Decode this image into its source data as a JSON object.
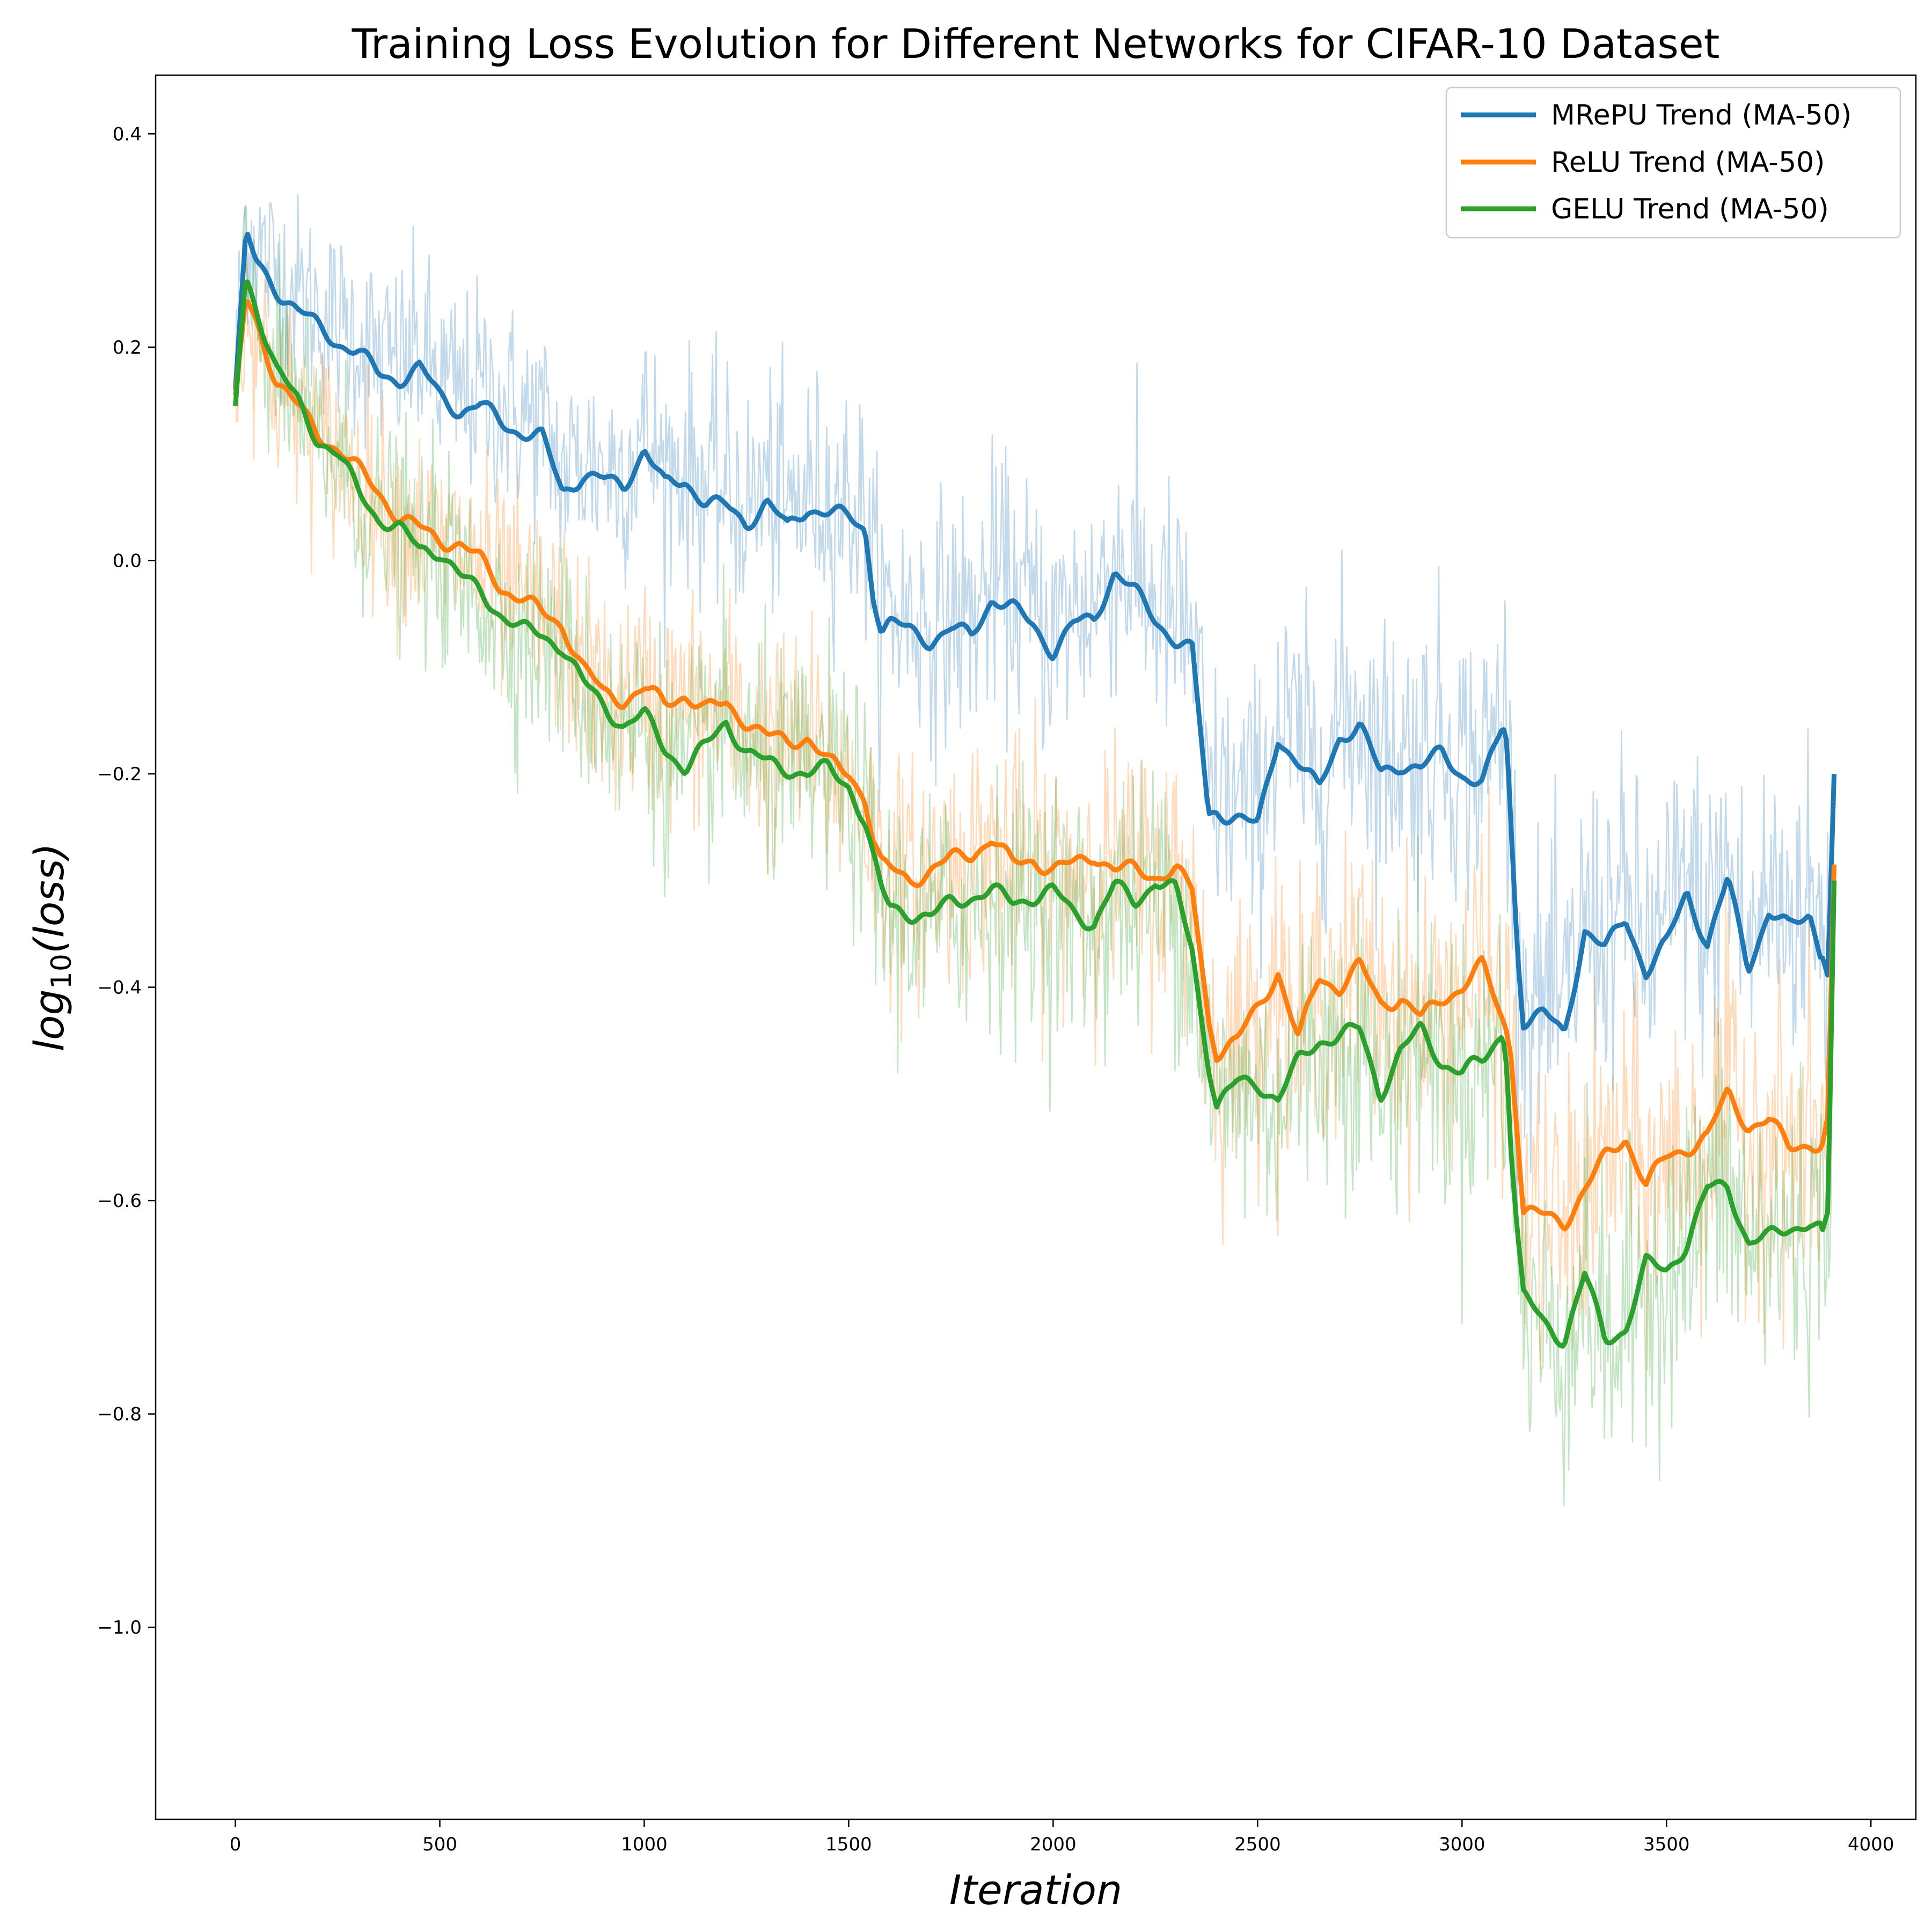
{
  "chart_data": {
    "type": "line",
    "title": "Training Loss Evolution for Different Networks for CIFAR-10 Dataset",
    "xlabel": "Iteration",
    "ylabel": "log",
    "ylabel_sub": "10",
    "ylabel_suffix": "(loss)",
    "xlim": [
      -195,
      4110
    ],
    "ylim": [
      -1.18,
      0.455
    ],
    "xticks": [
      0,
      500,
      1000,
      1500,
      2000,
      2500,
      3000,
      3500,
      4000
    ],
    "xtick_labels": [
      "0",
      "500",
      "1000",
      "1500",
      "2000",
      "2500",
      "3000",
      "3500",
      "4000"
    ],
    "yticks": [
      0.4,
      0.2,
      0.0,
      -0.2,
      -0.4,
      -0.6,
      -0.8,
      -1.0
    ],
    "ytick_labels": [
      "0.4",
      "0.2",
      "0.0",
      "−0.2",
      "−0.4",
      "−0.6",
      "−0.8",
      "−1.0"
    ],
    "grid": false,
    "legend_position": "top-right",
    "series": [
      {
        "name": "MRePU Trend (MA-50)",
        "color": "#1f77b4",
        "x": [
          0,
          25,
          50,
          100,
          150,
          200,
          250,
          300,
          350,
          400,
          450,
          500,
          550,
          600,
          650,
          700,
          750,
          800,
          850,
          900,
          950,
          1000,
          1050,
          1100,
          1150,
          1200,
          1250,
          1300,
          1350,
          1400,
          1450,
          1500,
          1540,
          1560,
          1580,
          1600,
          1650,
          1700,
          1750,
          1800,
          1850,
          1900,
          1950,
          2000,
          2050,
          2100,
          2150,
          2200,
          2250,
          2300,
          2340,
          2360,
          2380,
          2400,
          2450,
          2500,
          2550,
          2600,
          2650,
          2700,
          2750,
          2800,
          2850,
          2900,
          2950,
          3000,
          3050,
          3100,
          3110,
          3120,
          3135,
          3150,
          3200,
          3250,
          3300,
          3350,
          3400,
          3450,
          3500,
          3550,
          3600,
          3650,
          3700,
          3750,
          3800,
          3850,
          3880,
          3895,
          3910
        ],
        "y": [
          0.16,
          0.305,
          0.28,
          0.255,
          0.235,
          0.22,
          0.205,
          0.195,
          0.175,
          0.17,
          0.18,
          0.155,
          0.14,
          0.145,
          0.13,
          0.12,
          0.115,
          0.065,
          0.08,
          0.075,
          0.07,
          0.105,
          0.07,
          0.075,
          0.055,
          0.05,
          0.035,
          0.055,
          0.03,
          0.05,
          0.045,
          0.04,
          0.03,
          -0.03,
          -0.065,
          -0.06,
          -0.065,
          -0.075,
          -0.065,
          -0.07,
          -0.035,
          -0.045,
          -0.06,
          -0.085,
          -0.06,
          -0.055,
          -0.01,
          -0.03,
          -0.055,
          -0.075,
          -0.085,
          -0.16,
          -0.24,
          -0.235,
          -0.24,
          -0.25,
          -0.165,
          -0.19,
          -0.215,
          -0.165,
          -0.155,
          -0.2,
          -0.19,
          -0.195,
          -0.18,
          -0.2,
          -0.21,
          -0.155,
          -0.17,
          -0.25,
          -0.36,
          -0.43,
          -0.425,
          -0.445,
          -0.345,
          -0.365,
          -0.335,
          -0.385,
          -0.36,
          -0.31,
          -0.36,
          -0.3,
          -0.38,
          -0.33,
          -0.345,
          -0.33,
          -0.37,
          -0.39,
          -0.2
        ]
      },
      {
        "name": "ReLU Trend (MA-50)",
        "color": "#ff7f0e",
        "x": [
          0,
          25,
          50,
          100,
          150,
          200,
          250,
          300,
          350,
          400,
          450,
          500,
          550,
          600,
          650,
          700,
          750,
          800,
          850,
          900,
          950,
          1000,
          1050,
          1100,
          1150,
          1200,
          1250,
          1300,
          1350,
          1400,
          1450,
          1500,
          1540,
          1560,
          1580,
          1600,
          1650,
          1700,
          1750,
          1800,
          1850,
          1900,
          1950,
          2000,
          2050,
          2100,
          2150,
          2200,
          2250,
          2300,
          2340,
          2360,
          2380,
          2400,
          2450,
          2500,
          2550,
          2600,
          2650,
          2700,
          2750,
          2800,
          2850,
          2900,
          2950,
          3000,
          3050,
          3100,
          3110,
          3120,
          3135,
          3150,
          3200,
          3250,
          3300,
          3350,
          3400,
          3450,
          3500,
          3550,
          3600,
          3650,
          3700,
          3750,
          3800,
          3850,
          3880,
          3895,
          3910
        ],
        "y": [
          0.155,
          0.245,
          0.225,
          0.17,
          0.145,
          0.12,
          0.105,
          0.085,
          0.065,
          0.04,
          0.03,
          0.02,
          0.015,
          0.0,
          -0.025,
          -0.035,
          -0.05,
          -0.06,
          -0.1,
          -0.125,
          -0.13,
          -0.12,
          -0.135,
          -0.125,
          -0.14,
          -0.135,
          -0.15,
          -0.165,
          -0.17,
          -0.165,
          -0.19,
          -0.2,
          -0.22,
          -0.26,
          -0.285,
          -0.29,
          -0.3,
          -0.29,
          -0.28,
          -0.275,
          -0.26,
          -0.285,
          -0.28,
          -0.29,
          -0.285,
          -0.275,
          -0.29,
          -0.29,
          -0.295,
          -0.29,
          -0.31,
          -0.37,
          -0.43,
          -0.46,
          -0.45,
          -0.42,
          -0.385,
          -0.45,
          -0.39,
          -0.4,
          -0.38,
          -0.415,
          -0.41,
          -0.43,
          -0.41,
          -0.4,
          -0.38,
          -0.43,
          -0.44,
          -0.46,
          -0.53,
          -0.61,
          -0.615,
          -0.62,
          -0.59,
          -0.56,
          -0.54,
          -0.585,
          -0.56,
          -0.55,
          -0.54,
          -0.5,
          -0.53,
          -0.525,
          -0.55,
          -0.545,
          -0.55,
          -0.52,
          -0.285
        ]
      },
      {
        "name": "GELU Trend (MA-50)",
        "color": "#2ca02c",
        "x": [
          0,
          25,
          50,
          100,
          150,
          200,
          250,
          300,
          350,
          400,
          450,
          500,
          550,
          600,
          650,
          700,
          750,
          800,
          850,
          900,
          950,
          1000,
          1050,
          1100,
          1150,
          1200,
          1250,
          1300,
          1350,
          1400,
          1450,
          1500,
          1540,
          1560,
          1580,
          1600,
          1650,
          1700,
          1750,
          1800,
          1850,
          1900,
          1950,
          2000,
          2050,
          2100,
          2150,
          2200,
          2250,
          2300,
          2340,
          2360,
          2380,
          2400,
          2450,
          2500,
          2550,
          2600,
          2650,
          2700,
          2750,
          2800,
          2850,
          2900,
          2950,
          3000,
          3050,
          3100,
          3110,
          3120,
          3135,
          3150,
          3200,
          3250,
          3300,
          3350,
          3400,
          3450,
          3500,
          3550,
          3600,
          3650,
          3700,
          3750,
          3800,
          3850,
          3880,
          3895,
          3910
        ],
        "y": [
          0.145,
          0.265,
          0.24,
          0.18,
          0.15,
          0.115,
          0.1,
          0.065,
          0.04,
          0.03,
          0.01,
          0.01,
          -0.015,
          -0.03,
          -0.05,
          -0.065,
          -0.07,
          -0.08,
          -0.115,
          -0.135,
          -0.155,
          -0.145,
          -0.175,
          -0.195,
          -0.175,
          -0.15,
          -0.18,
          -0.19,
          -0.195,
          -0.2,
          -0.195,
          -0.21,
          -0.245,
          -0.28,
          -0.31,
          -0.325,
          -0.33,
          -0.335,
          -0.32,
          -0.315,
          -0.31,
          -0.32,
          -0.315,
          -0.31,
          -0.33,
          -0.34,
          -0.305,
          -0.32,
          -0.3,
          -0.31,
          -0.365,
          -0.42,
          -0.47,
          -0.51,
          -0.49,
          -0.49,
          -0.505,
          -0.47,
          -0.45,
          -0.445,
          -0.44,
          -0.5,
          -0.46,
          -0.44,
          -0.47,
          -0.48,
          -0.47,
          -0.44,
          -0.47,
          -0.55,
          -0.63,
          -0.69,
          -0.715,
          -0.73,
          -0.67,
          -0.73,
          -0.72,
          -0.66,
          -0.665,
          -0.64,
          -0.59,
          -0.585,
          -0.64,
          -0.635,
          -0.625,
          -0.62,
          -0.63,
          -0.61,
          -0.3
        ]
      }
    ]
  }
}
